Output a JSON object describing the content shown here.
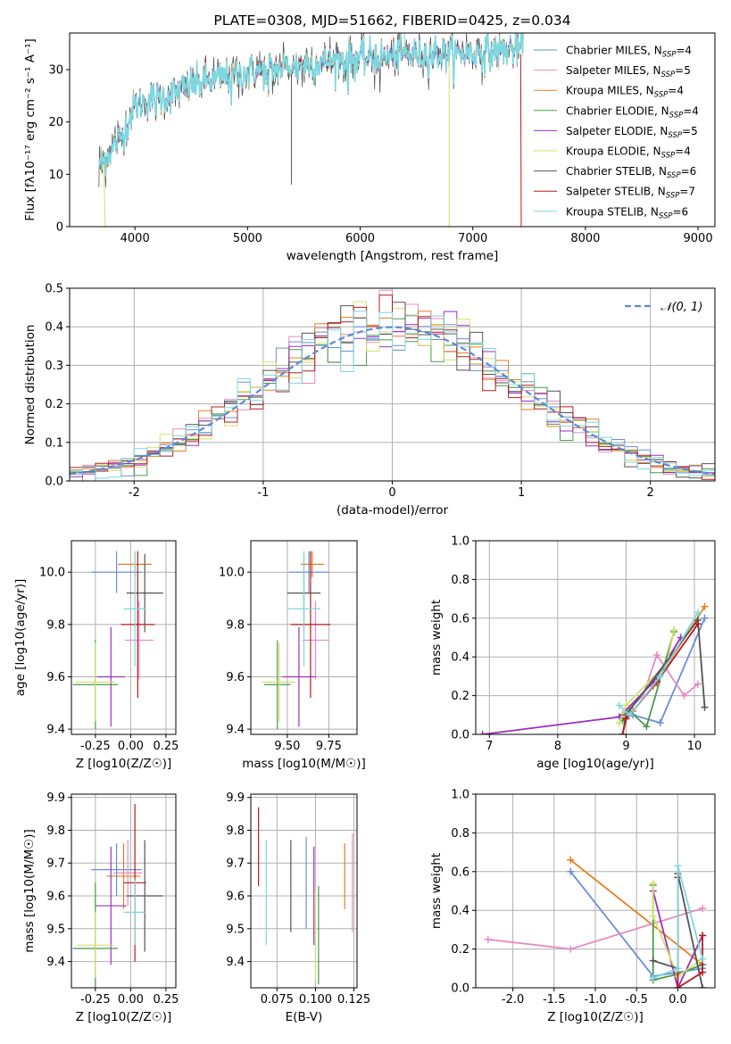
{
  "colors": {
    "chabrier_miles": "#6a8fd8",
    "salpeter_miles": "#e88ac4",
    "kroupa_miles": "#e67e22",
    "chabrier_elodie": "#4a9a4a",
    "salpeter_elodie": "#9b30b8",
    "kroupa_elodie": "#d2e06a",
    "chabrier_stelib": "#555555",
    "salpeter_stelib": "#b81c1c",
    "kroupa_stelib": "#7fd8e0",
    "normal": "#5b8bd6",
    "grid": "#b0b0b0"
  },
  "chart_data": [
    {
      "id": "spectrum",
      "type": "line",
      "title": "PLATE=0308, MJD=51662, FIBERID=0425, z=0.034",
      "xlabel": "wavelength [Angstrom, rest frame]",
      "ylabel": "Flux [fλ10⁻¹⁷ erg cm⁻² s⁻¹ A⁻¹]",
      "xlim": [
        3420,
        9150
      ],
      "ylim": [
        0,
        37
      ],
      "xticks": [
        4000,
        5000,
        6000,
        7000,
        8000,
        9000
      ],
      "yticks": [
        0,
        10,
        20,
        30
      ],
      "grid": false,
      "legend_position": "right",
      "series": [
        {
          "name": "Chabrier MILES, N_SSP=4"
        },
        {
          "name": "Salpeter MILES, N_SSP=5"
        },
        {
          "name": "Kroupa MILES, N_SSP=4"
        },
        {
          "name": "Chabrier ELODIE, N_SSP=4"
        },
        {
          "name": "Salpeter ELODIE, N_SSP=5"
        },
        {
          "name": "Kroupa ELODIE, N_SSP=4"
        },
        {
          "name": "Chabrier STELIB, N_SSP=6"
        },
        {
          "name": "Salpeter STELIB, N_SSP=7"
        },
        {
          "name": "Kroupa STELIB, N_SSP=6"
        }
      ],
      "continuum": {
        "x": [
          3700,
          3800,
          3900,
          4000,
          4100,
          4300,
          4500,
          4700,
          5000,
          5200,
          5500,
          5800,
          6000,
          6300,
          6600,
          6900,
          7200,
          7450
        ],
        "y": [
          12,
          15,
          18,
          23,
          24,
          25,
          27,
          28,
          29.5,
          30,
          31,
          32,
          32,
          32.5,
          33,
          33,
          33.5,
          34
        ]
      }
    },
    {
      "id": "residuals",
      "type": "bar",
      "xlabel": "(data-model)/error",
      "ylabel": "Normed distribution",
      "xlim": [
        -2.5,
        2.5
      ],
      "ylim": [
        0,
        0.5
      ],
      "xticks": [
        -2,
        -1,
        0,
        1,
        2
      ],
      "yticks": [
        0.0,
        0.1,
        0.2,
        0.3,
        0.4,
        0.5
      ],
      "grid": true,
      "legend": [
        "𝒩(0, 1)"
      ],
      "legend_position": "top-right",
      "bin_width": 0.1
    },
    {
      "id": "age-vs-Z",
      "type": "scatter",
      "xlabel": "Z [log10(Z/Z☉)]",
      "ylabel": "age  [log10(age/yr)]",
      "xlim": [
        -0.42,
        0.32
      ],
      "ylim": [
        9.38,
        10.12
      ],
      "xticks": [
        -0.25,
        0.0,
        0.25
      ],
      "yticks": [
        9.4,
        9.6,
        9.8,
        10.0
      ],
      "grid": true,
      "points": [
        {
          "model": "kroupa_miles",
          "x": 0.03,
          "y": 10.03,
          "xerr": 0.12,
          "yerr": 0.05
        },
        {
          "model": "chabrier_miles",
          "x": -0.1,
          "y": 10.0,
          "xerr": 0.18,
          "yerr": 0.08
        },
        {
          "model": "salpeter_miles",
          "x": 0.06,
          "y": 9.74,
          "xerr": 0.1,
          "yerr": 0.15
        },
        {
          "model": "salpeter_elodie",
          "x": -0.14,
          "y": 9.6,
          "xerr": 0.1,
          "yerr": 0.19
        },
        {
          "model": "chabrier_elodie",
          "x": -0.25,
          "y": 9.57,
          "xerr": 0.16,
          "yerr": 0.17
        },
        {
          "model": "kroupa_elodie",
          "x": -0.25,
          "y": 9.58,
          "xerr": 0.14,
          "yerr": 0.15
        },
        {
          "model": "chabrier_stelib",
          "x": 0.1,
          "y": 9.92,
          "xerr": 0.13,
          "yerr": 0.15
        },
        {
          "model": "salpeter_stelib",
          "x": 0.05,
          "y": 9.8,
          "xerr": 0.12,
          "yerr": 0.28
        },
        {
          "model": "kroupa_stelib",
          "x": 0.03,
          "y": 9.86,
          "xerr": 0.08,
          "yerr": 0.22
        }
      ]
    },
    {
      "id": "age-vs-mass",
      "type": "scatter",
      "xlabel": "mass [log10(M/M☉)]",
      "ylabel": "",
      "xlim": [
        9.28,
        9.92
      ],
      "ylim": [
        9.38,
        10.12
      ],
      "xticks": [
        9.5,
        9.75
      ],
      "yticks": [
        9.4,
        9.6,
        9.8,
        10.0
      ],
      "grid": true,
      "points": [
        {
          "model": "kroupa_miles",
          "x": 9.65,
          "y": 10.03,
          "xerr": 0.07,
          "yerr": 0.05
        },
        {
          "model": "chabrier_miles",
          "x": 9.63,
          "y": 10.0,
          "xerr": 0.12,
          "yerr": 0.08
        },
        {
          "model": "salpeter_miles",
          "x": 9.67,
          "y": 9.74,
          "xerr": 0.08,
          "yerr": 0.15
        },
        {
          "model": "salpeter_elodie",
          "x": 9.57,
          "y": 9.6,
          "xerr": 0.1,
          "yerr": 0.19
        },
        {
          "model": "chabrier_elodie",
          "x": 9.44,
          "y": 9.57,
          "xerr": 0.08,
          "yerr": 0.17
        },
        {
          "model": "kroupa_elodie",
          "x": 9.45,
          "y": 9.58,
          "xerr": 0.1,
          "yerr": 0.15
        },
        {
          "model": "chabrier_stelib",
          "x": 9.6,
          "y": 9.92,
          "xerr": 0.1,
          "yerr": 0.15
        },
        {
          "model": "salpeter_stelib",
          "x": 9.64,
          "y": 9.8,
          "xerr": 0.12,
          "yerr": 0.28
        },
        {
          "model": "kroupa_stelib",
          "x": 9.6,
          "y": 9.86,
          "xerr": 0.1,
          "yerr": 0.22
        }
      ]
    },
    {
      "id": "weight-vs-age",
      "type": "line",
      "xlabel": "age  [log10(age/yr)]",
      "ylabel": "mass weight",
      "xlim": [
        6.8,
        10.3
      ],
      "ylim": [
        0,
        1.0
      ],
      "xticks": [
        7,
        8,
        9,
        10
      ],
      "yticks": [
        0.0,
        0.2,
        0.4,
        0.6,
        0.8,
        1.0
      ],
      "grid": true,
      "series": [
        {
          "model": "kroupa_miles",
          "x": [
            8.95,
            9.1,
            9.4,
            10.15
          ],
          "y": [
            0.1,
            0.12,
            0.25,
            0.66
          ]
        },
        {
          "model": "chabrier_miles",
          "x": [
            8.95,
            9.1,
            9.5,
            10.15
          ],
          "y": [
            0.08,
            0.1,
            0.06,
            0.6
          ]
        },
        {
          "model": "salpeter_miles",
          "x": [
            9.0,
            9.25,
            9.45,
            9.85,
            10.05
          ],
          "y": [
            0.12,
            0.2,
            0.41,
            0.2,
            0.26
          ]
        },
        {
          "model": "chabrier_elodie",
          "x": [
            8.95,
            9.05,
            9.3,
            9.7
          ],
          "y": [
            0.07,
            0.12,
            0.04,
            0.53
          ]
        },
        {
          "model": "salpeter_elodie",
          "x": [
            6.9,
            8.9,
            9.4,
            9.8
          ],
          "y": [
            0.0,
            0.09,
            0.27,
            0.5
          ]
        },
        {
          "model": "kroupa_elodie",
          "x": [
            8.9,
            9.0,
            9.6,
            9.7
          ],
          "y": [
            0.06,
            0.15,
            0.37,
            0.54
          ]
        },
        {
          "model": "chabrier_stelib",
          "x": [
            8.95,
            9.0,
            10.05,
            10.15
          ],
          "y": [
            0.0,
            0.1,
            0.59,
            0.14
          ]
        },
        {
          "model": "salpeter_stelib",
          "x": [
            8.95,
            9.0,
            9.45,
            10.05
          ],
          "y": [
            0.0,
            0.08,
            0.27,
            0.57
          ]
        },
        {
          "model": "kroupa_stelib",
          "x": [
            8.9,
            9.05,
            9.5,
            10.05
          ],
          "y": [
            0.15,
            0.1,
            0.3,
            0.63
          ]
        }
      ]
    },
    {
      "id": "mass-vs-Z",
      "type": "scatter",
      "xlabel": "Z [log10(Z/Z☉)]",
      "ylabel": "mass [log10(M/M☉)]",
      "xlim": [
        -0.42,
        0.32
      ],
      "ylim": [
        9.32,
        9.91
      ],
      "xticks": [
        -0.25,
        0.0,
        0.25
      ],
      "yticks": [
        9.4,
        9.5,
        9.6,
        9.7,
        9.8,
        9.9
      ],
      "grid": true,
      "points": [
        {
          "model": "kroupa_miles",
          "x": -0.05,
          "y": 9.66,
          "xerr": 0.12,
          "yerr": 0.1
        },
        {
          "model": "chabrier_miles",
          "x": -0.1,
          "y": 9.68,
          "xerr": 0.18,
          "yerr": 0.08
        },
        {
          "model": "salpeter_miles",
          "x": -0.02,
          "y": 9.67,
          "xerr": 0.1,
          "yerr": 0.1
        },
        {
          "model": "salpeter_elodie",
          "x": -0.14,
          "y": 9.57,
          "xerr": 0.11,
          "yerr": 0.18
        },
        {
          "model": "chabrier_elodie",
          "x": -0.25,
          "y": 9.44,
          "xerr": 0.16,
          "yerr": 0.2
        },
        {
          "model": "kroupa_elodie",
          "x": -0.25,
          "y": 9.45,
          "xerr": 0.13,
          "yerr": 0.1
        },
        {
          "model": "chabrier_stelib",
          "x": 0.1,
          "y": 9.6,
          "xerr": 0.13,
          "yerr": 0.17
        },
        {
          "model": "salpeter_stelib",
          "x": 0.03,
          "y": 9.64,
          "xerr": 0.08,
          "yerr": 0.24
        },
        {
          "model": "kroupa_stelib",
          "x": 0.03,
          "y": 9.55,
          "xerr": 0.08,
          "yerr": 0.1
        }
      ]
    },
    {
      "id": "mass-vs-ebv",
      "type": "scatter",
      "xlabel": "E(B-V)",
      "ylabel": "",
      "xlim": [
        0.058,
        0.127
      ],
      "ylim": [
        9.32,
        9.91
      ],
      "xticks": [
        0.075,
        0.1,
        0.125
      ],
      "yticks": [
        9.4,
        9.5,
        9.6,
        9.7,
        9.8,
        9.9
      ],
      "grid": true,
      "points": [
        {
          "model": "salpeter_stelib",
          "x": 0.063,
          "y": 9.75,
          "yerr": 0.12
        },
        {
          "model": "kroupa_stelib",
          "x": 0.068,
          "y": 9.61,
          "yerr": 0.16
        },
        {
          "model": "chabrier_stelib",
          "x": 0.084,
          "y": 9.63,
          "yerr": 0.14
        },
        {
          "model": "chabrier_miles",
          "x": 0.094,
          "y": 9.64,
          "yerr": 0.14
        },
        {
          "model": "salpeter_elodie",
          "x": 0.099,
          "y": 9.6,
          "yerr": 0.15
        },
        {
          "model": "kroupa_elodie",
          "x": 0.1,
          "y": 9.48,
          "yerr": 0.14
        },
        {
          "model": "chabrier_elodie",
          "x": 0.102,
          "y": 9.48,
          "yerr": 0.15
        },
        {
          "model": "kroupa_miles",
          "x": 0.119,
          "y": 9.66,
          "yerr": 0.1
        },
        {
          "model": "salpeter_miles",
          "x": 0.124,
          "y": 9.64,
          "yerr": 0.15
        }
      ]
    },
    {
      "id": "weight-vs-Z",
      "type": "line",
      "xlabel": "Z [log10(Z/Z☉)]",
      "ylabel": "mass weight",
      "xlim": [
        -2.45,
        0.45
      ],
      "ylim": [
        0,
        1.0
      ],
      "xticks": [
        -2.0,
        -1.5,
        -1.0,
        -0.5,
        0.0
      ],
      "yticks": [
        0.0,
        0.2,
        0.4,
        0.6,
        0.8,
        1.0
      ],
      "grid": true,
      "series": [
        {
          "model": "kroupa_miles",
          "x": [
            -1.3,
            0.3
          ],
          "y": [
            0.66,
            0.12
          ]
        },
        {
          "model": "chabrier_miles",
          "x": [
            -1.3,
            -0.3,
            0.3
          ],
          "y": [
            0.6,
            0.06,
            0.1
          ]
        },
        {
          "model": "salpeter_miles",
          "x": [
            -2.3,
            -1.3,
            0.3
          ],
          "y": [
            0.25,
            0.2,
            0.41
          ]
        },
        {
          "model": "chabrier_elodie",
          "x": [
            -0.3,
            -0.3,
            0.0,
            0.3
          ],
          "y": [
            0.53,
            0.04,
            0.07,
            0.12
          ]
        },
        {
          "model": "salpeter_elodie",
          "x": [
            -0.3,
            0.0,
            0.3
          ],
          "y": [
            0.5,
            0.0,
            0.27
          ]
        },
        {
          "model": "kroupa_elodie",
          "x": [
            -0.3,
            -0.3,
            0.0,
            0.3
          ],
          "y": [
            0.54,
            0.37,
            0.06,
            0.15
          ]
        },
        {
          "model": "chabrier_stelib",
          "x": [
            -0.3,
            0.0,
            0.0,
            0.3
          ],
          "y": [
            0.14,
            0.1,
            0.59,
            0.0
          ]
        },
        {
          "model": "salpeter_stelib",
          "x": [
            0.0,
            0.0,
            0.3,
            0.3
          ],
          "y": [
            0.57,
            0.0,
            0.08,
            0.27
          ]
        },
        {
          "model": "kroupa_stelib",
          "x": [
            -0.3,
            0.0,
            0.0,
            0.3
          ],
          "y": [
            0.05,
            0.1,
            0.63,
            0.15
          ]
        }
      ]
    }
  ]
}
